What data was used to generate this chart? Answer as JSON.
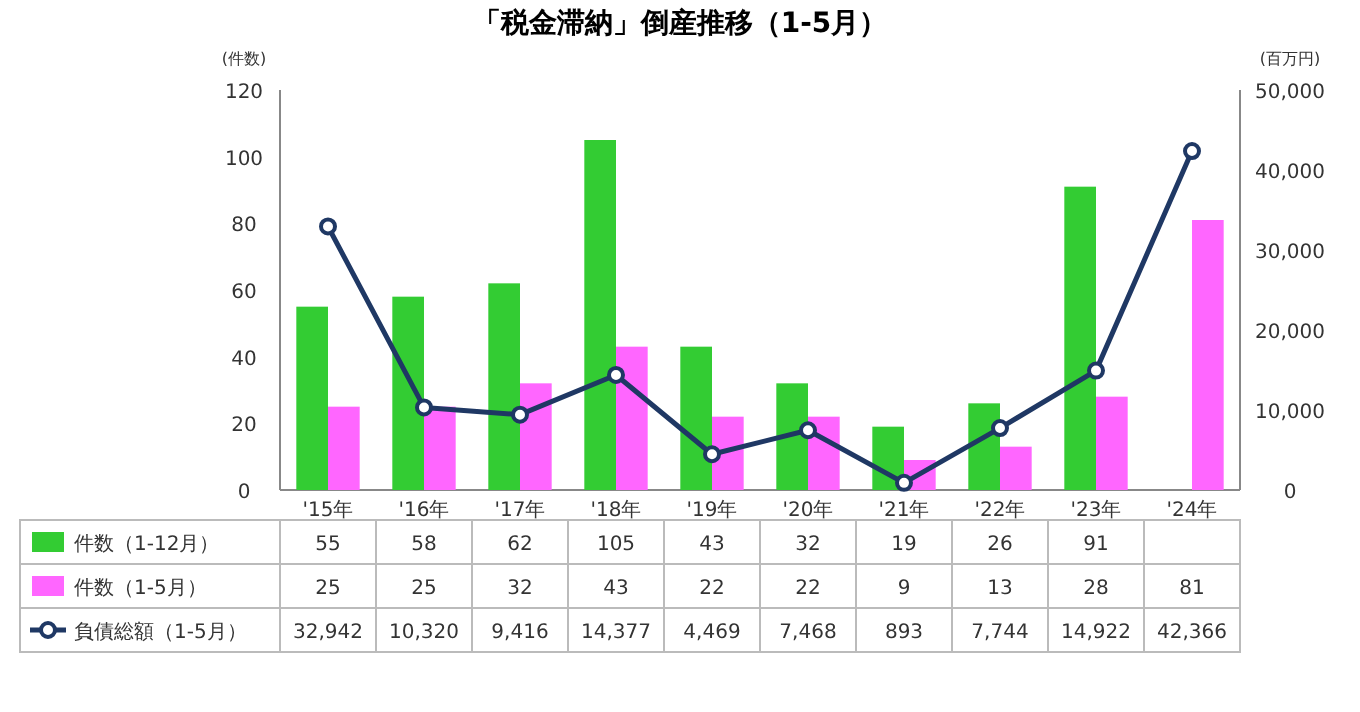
{
  "chart_data": {
    "type": "bar",
    "title": "「税金滞納」倒産推移（1-5月）",
    "categories": [
      "'15年",
      "'16年",
      "'17年",
      "'18年",
      "'19年",
      "'20年",
      "'21年",
      "'22年",
      "'23年",
      "'24年"
    ],
    "ylabel": "(件数)",
    "y2label": "(百万円)",
    "ylim": [
      0,
      120
    ],
    "yticks": [
      0,
      20,
      40,
      60,
      80,
      100,
      120
    ],
    "y2lim": [
      0,
      50000
    ],
    "y2ticks": [
      0,
      {
        "value": 10000,
        "label": "10,000"
      },
      {
        "value": 20000,
        "label": "20,000"
      },
      {
        "value": 30000,
        "label": "30,000"
      },
      {
        "value": 40000,
        "label": "40,000"
      },
      {
        "value": 50000,
        "label": "50,000"
      }
    ],
    "legend": "bottom",
    "marker": "circle",
    "series": [
      {
        "name": "件数（1-12月）",
        "color": "#33cc33",
        "values": [
          55,
          58,
          62,
          105,
          43,
          32,
          19,
          26,
          91,
          null
        ],
        "value_labels": [
          "55",
          "58",
          "62",
          "105",
          "43",
          "32",
          "19",
          "26",
          "91",
          null
        ]
      },
      {
        "name": "件数（1-5月）",
        "color": "#ff66ff",
        "values": [
          25,
          25,
          32,
          43,
          22,
          22,
          9,
          13,
          28,
          81
        ],
        "value_labels": [
          "25",
          "25",
          "32",
          "43",
          "22",
          "22",
          "9",
          "13",
          "28",
          "81"
        ]
      },
      {
        "name": "負債総額（1-5月）",
        "type": "line",
        "axis": "y2",
        "color": "#1f3864",
        "values": [
          32942,
          10320,
          9416,
          14377,
          4469,
          7468,
          893,
          7744,
          14922,
          42366
        ],
        "value_labels": [
          "32,942",
          "10,320",
          "9,416",
          "14,377",
          "4,469",
          "7,468",
          "893",
          "7,744",
          "14,922",
          "42,366"
        ]
      }
    ]
  }
}
